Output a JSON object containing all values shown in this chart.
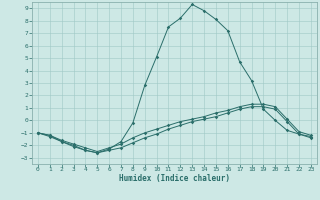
{
  "xlabel": "Humidex (Indice chaleur)",
  "bg_color": "#cde8e5",
  "line_color": "#2a6e6a",
  "grid_color": "#a0c8c5",
  "spine_color": "#8ab0ad",
  "xlim": [
    -0.5,
    23.5
  ],
  "ylim": [
    -3.5,
    9.5
  ],
  "xticks": [
    0,
    1,
    2,
    3,
    4,
    5,
    6,
    7,
    8,
    9,
    10,
    11,
    12,
    13,
    14,
    15,
    16,
    17,
    18,
    19,
    20,
    21,
    22,
    23
  ],
  "yticks": [
    -3,
    -2,
    -1,
    0,
    1,
    2,
    3,
    4,
    5,
    6,
    7,
    8,
    9
  ],
  "line1_x": [
    0,
    1,
    2,
    3,
    4,
    5,
    6,
    7,
    8,
    9,
    10,
    11,
    12,
    13,
    14,
    15,
    16,
    17,
    18,
    19,
    20,
    21,
    22,
    23
  ],
  "line1_y": [
    -1.0,
    -1.2,
    -1.7,
    -2.1,
    -2.4,
    -2.6,
    -2.4,
    -2.2,
    -1.8,
    -1.4,
    -1.1,
    -0.7,
    -0.4,
    -0.1,
    0.1,
    0.3,
    0.6,
    0.9,
    1.1,
    1.1,
    0.9,
    -0.1,
    -1.1,
    -1.3
  ],
  "line2_x": [
    0,
    1,
    2,
    3,
    4,
    5,
    6,
    7,
    8,
    9,
    10,
    11,
    12,
    13,
    14,
    15,
    16,
    17,
    18,
    19,
    20,
    21,
    22,
    23
  ],
  "line2_y": [
    -1.0,
    -1.3,
    -1.7,
    -2.0,
    -2.4,
    -2.6,
    -2.3,
    -1.7,
    -0.2,
    2.8,
    5.1,
    7.5,
    8.2,
    9.3,
    8.8,
    8.1,
    7.2,
    4.7,
    3.2,
    0.9,
    0.0,
    -0.8,
    -1.1,
    -1.4
  ],
  "line3_x": [
    0,
    1,
    2,
    3,
    4,
    5,
    6,
    7,
    8,
    9,
    10,
    11,
    12,
    13,
    14,
    15,
    16,
    17,
    18,
    19,
    20,
    21,
    22,
    23
  ],
  "line3_y": [
    -1.0,
    -1.2,
    -1.6,
    -1.9,
    -2.2,
    -2.5,
    -2.2,
    -1.9,
    -1.4,
    -1.0,
    -0.7,
    -0.4,
    -0.1,
    0.1,
    0.3,
    0.6,
    0.8,
    1.1,
    1.3,
    1.3,
    1.1,
    0.1,
    -0.9,
    -1.2
  ]
}
